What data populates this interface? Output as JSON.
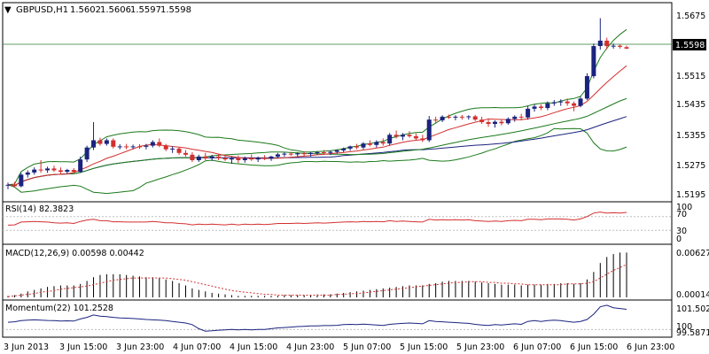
{
  "header": {
    "arrow": "▼",
    "symbol": "GBPUSD,H1",
    "open": "1.5602",
    "high": "1.5606",
    "low": "1.5597",
    "close": "1.5598"
  },
  "colors": {
    "bull": "#1a237e",
    "bear": "#d32f2f",
    "bb_mid": "#1a237e",
    "bb_band": "#1b7a1b",
    "ma_red": "#d32f2f",
    "ma_green": "#1b7a1b",
    "rsi_line": "#d32f2f",
    "macd_hist": "#000000",
    "macd_signal": "#d32f2f",
    "momentum_line": "#1a237e",
    "grid": "#bdbdbd",
    "current_price_line": "#2e7d32"
  },
  "price_axis": {
    "ticks": [
      "1.5675",
      "1.5515",
      "1.5435",
      "1.5355",
      "1.5275",
      "1.5195"
    ],
    "current_price": "1.5598"
  },
  "rsi": {
    "title": "RSI(14) 82.3823",
    "levels": [
      "100",
      "70",
      "30",
      "0"
    ]
  },
  "macd": {
    "title": "MACD(12,26,9) 0.00598 0.00442",
    "top_label": "0.00627",
    "bottom_label": "0.00014"
  },
  "momentum": {
    "title": "Momentum(22) 101.2528",
    "top_label": "101.5027",
    "mid_label": "100",
    "bottom_label": "99.5871"
  },
  "time_axis": {
    "labels": [
      "3 Jun 2013",
      "3 Jun 15:00",
      "3 Jun 23:00",
      "4 Jun 07:00",
      "4 Jun 15:00",
      "4 Jun 23:00",
      "5 Jun 07:00",
      "5 Jun 15:00",
      "5 Jun 23:00",
      "6 Jun 07:00",
      "6 Jun 15:00",
      "6 Jun 23:00"
    ]
  },
  "chart_data": {
    "type": "candlestick",
    "symbol": "GBPUSD",
    "timeframe": "H1",
    "ylim": [
      1.518,
      1.572
    ],
    "candles": [
      {
        "o": 1.522,
        "h": 1.5228,
        "l": 1.521,
        "c": 1.5222
      },
      {
        "o": 1.5222,
        "h": 1.523,
        "l": 1.5215,
        "c": 1.5218
      },
      {
        "o": 1.5218,
        "h": 1.5255,
        "l": 1.5215,
        "c": 1.525
      },
      {
        "o": 1.525,
        "h": 1.5262,
        "l": 1.5242,
        "c": 1.5256
      },
      {
        "o": 1.5256,
        "h": 1.527,
        "l": 1.525,
        "c": 1.5264
      },
      {
        "o": 1.5264,
        "h": 1.529,
        "l": 1.5255,
        "c": 1.5262
      },
      {
        "o": 1.5262,
        "h": 1.5272,
        "l": 1.5255,
        "c": 1.5267
      },
      {
        "o": 1.5267,
        "h": 1.5275,
        "l": 1.5258,
        "c": 1.5262
      },
      {
        "o": 1.5262,
        "h": 1.527,
        "l": 1.525,
        "c": 1.5258
      },
      {
        "o": 1.5258,
        "h": 1.5266,
        "l": 1.5252,
        "c": 1.5263
      },
      {
        "o": 1.5263,
        "h": 1.5268,
        "l": 1.5255,
        "c": 1.5258
      },
      {
        "o": 1.5258,
        "h": 1.53,
        "l": 1.5255,
        "c": 1.5292
      },
      {
        "o": 1.5292,
        "h": 1.533,
        "l": 1.5285,
        "c": 1.5325
      },
      {
        "o": 1.5325,
        "h": 1.5395,
        "l": 1.5318,
        "c": 1.5345
      },
      {
        "o": 1.5345,
        "h": 1.5352,
        "l": 1.533,
        "c": 1.5335
      },
      {
        "o": 1.5335,
        "h": 1.535,
        "l": 1.533,
        "c": 1.5345
      },
      {
        "o": 1.5345,
        "h": 1.535,
        "l": 1.5322,
        "c": 1.5327
      },
      {
        "o": 1.5327,
        "h": 1.5334,
        "l": 1.532,
        "c": 1.5328
      },
      {
        "o": 1.5328,
        "h": 1.5335,
        "l": 1.532,
        "c": 1.5326
      },
      {
        "o": 1.5326,
        "h": 1.5333,
        "l": 1.532,
        "c": 1.5328
      },
      {
        "o": 1.5328,
        "h": 1.5334,
        "l": 1.5321,
        "c": 1.5327
      },
      {
        "o": 1.5327,
        "h": 1.5335,
        "l": 1.532,
        "c": 1.533
      },
      {
        "o": 1.533,
        "h": 1.5345,
        "l": 1.5325,
        "c": 1.534
      },
      {
        "o": 1.534,
        "h": 1.535,
        "l": 1.5326,
        "c": 1.533
      },
      {
        "o": 1.533,
        "h": 1.5335,
        "l": 1.5315,
        "c": 1.532
      },
      {
        "o": 1.532,
        "h": 1.5328,
        "l": 1.531,
        "c": 1.5322
      },
      {
        "o": 1.5322,
        "h": 1.5326,
        "l": 1.5305,
        "c": 1.531
      },
      {
        "o": 1.531,
        "h": 1.5318,
        "l": 1.53,
        "c": 1.5305
      },
      {
        "o": 1.5305,
        "h": 1.5312,
        "l": 1.5285,
        "c": 1.529
      },
      {
        "o": 1.529,
        "h": 1.5305,
        "l": 1.5285,
        "c": 1.53
      },
      {
        "o": 1.53,
        "h": 1.531,
        "l": 1.529,
        "c": 1.5295
      },
      {
        "o": 1.5295,
        "h": 1.5305,
        "l": 1.5288,
        "c": 1.53
      },
      {
        "o": 1.53,
        "h": 1.5308,
        "l": 1.529,
        "c": 1.5296
      },
      {
        "o": 1.5296,
        "h": 1.5305,
        "l": 1.5288,
        "c": 1.5292
      },
      {
        "o": 1.5292,
        "h": 1.53,
        "l": 1.528,
        "c": 1.5295
      },
      {
        "o": 1.5295,
        "h": 1.5303,
        "l": 1.5282,
        "c": 1.529
      },
      {
        "o": 1.529,
        "h": 1.53,
        "l": 1.5283,
        "c": 1.5295
      },
      {
        "o": 1.5295,
        "h": 1.5306,
        "l": 1.5288,
        "c": 1.5292
      },
      {
        "o": 1.5292,
        "h": 1.53,
        "l": 1.5285,
        "c": 1.5296
      },
      {
        "o": 1.5296,
        "h": 1.5304,
        "l": 1.529,
        "c": 1.5294
      },
      {
        "o": 1.5294,
        "h": 1.5302,
        "l": 1.5288,
        "c": 1.53
      },
      {
        "o": 1.53,
        "h": 1.531,
        "l": 1.5295,
        "c": 1.5306
      },
      {
        "o": 1.5306,
        "h": 1.5312,
        "l": 1.53,
        "c": 1.5308
      },
      {
        "o": 1.5308,
        "h": 1.5313,
        "l": 1.5302,
        "c": 1.5306
      },
      {
        "o": 1.5306,
        "h": 1.5312,
        "l": 1.53,
        "c": 1.5309
      },
      {
        "o": 1.5309,
        "h": 1.5314,
        "l": 1.5302,
        "c": 1.5307
      },
      {
        "o": 1.5307,
        "h": 1.5312,
        "l": 1.53,
        "c": 1.531
      },
      {
        "o": 1.531,
        "h": 1.5315,
        "l": 1.5305,
        "c": 1.5312
      },
      {
        "o": 1.5312,
        "h": 1.5318,
        "l": 1.5306,
        "c": 1.531
      },
      {
        "o": 1.531,
        "h": 1.5316,
        "l": 1.5304,
        "c": 1.5313
      },
      {
        "o": 1.5313,
        "h": 1.532,
        "l": 1.5308,
        "c": 1.5317
      },
      {
        "o": 1.5317,
        "h": 1.5325,
        "l": 1.5312,
        "c": 1.5322
      },
      {
        "o": 1.5322,
        "h": 1.533,
        "l": 1.5316,
        "c": 1.5328
      },
      {
        "o": 1.5328,
        "h": 1.5335,
        "l": 1.532,
        "c": 1.5325
      },
      {
        "o": 1.5325,
        "h": 1.534,
        "l": 1.532,
        "c": 1.5336
      },
      {
        "o": 1.5336,
        "h": 1.5345,
        "l": 1.5328,
        "c": 1.5332
      },
      {
        "o": 1.5332,
        "h": 1.5345,
        "l": 1.5325,
        "c": 1.534
      },
      {
        "o": 1.534,
        "h": 1.535,
        "l": 1.533,
        "c": 1.5336
      },
      {
        "o": 1.5336,
        "h": 1.5365,
        "l": 1.533,
        "c": 1.536
      },
      {
        "o": 1.536,
        "h": 1.5372,
        "l": 1.535,
        "c": 1.5355
      },
      {
        "o": 1.5355,
        "h": 1.5365,
        "l": 1.5345,
        "c": 1.536
      },
      {
        "o": 1.536,
        "h": 1.537,
        "l": 1.5352,
        "c": 1.5356
      },
      {
        "o": 1.5356,
        "h": 1.5364,
        "l": 1.5345,
        "c": 1.535
      },
      {
        "o": 1.535,
        "h": 1.536,
        "l": 1.534,
        "c": 1.5345
      },
      {
        "o": 1.5345,
        "h": 1.5412,
        "l": 1.534,
        "c": 1.5402
      },
      {
        "o": 1.5402,
        "h": 1.541,
        "l": 1.5392,
        "c": 1.54
      },
      {
        "o": 1.54,
        "h": 1.5414,
        "l": 1.5395,
        "c": 1.541
      },
      {
        "o": 1.541,
        "h": 1.5416,
        "l": 1.5404,
        "c": 1.5408
      },
      {
        "o": 1.5408,
        "h": 1.5414,
        "l": 1.54,
        "c": 1.541
      },
      {
        "o": 1.541,
        "h": 1.5415,
        "l": 1.5402,
        "c": 1.5409
      },
      {
        "o": 1.5409,
        "h": 1.5414,
        "l": 1.5402,
        "c": 1.5411
      },
      {
        "o": 1.5411,
        "h": 1.5415,
        "l": 1.5398,
        "c": 1.5402
      },
      {
        "o": 1.5402,
        "h": 1.541,
        "l": 1.539,
        "c": 1.5395
      },
      {
        "o": 1.5395,
        "h": 1.5402,
        "l": 1.5382,
        "c": 1.539
      },
      {
        "o": 1.539,
        "h": 1.54,
        "l": 1.538,
        "c": 1.5396
      },
      {
        "o": 1.5396,
        "h": 1.5402,
        "l": 1.5386,
        "c": 1.5392
      },
      {
        "o": 1.5392,
        "h": 1.5408,
        "l": 1.5388,
        "c": 1.5404
      },
      {
        "o": 1.5404,
        "h": 1.5414,
        "l": 1.5396,
        "c": 1.541
      },
      {
        "o": 1.541,
        "h": 1.5418,
        "l": 1.54,
        "c": 1.5408
      },
      {
        "o": 1.5408,
        "h": 1.544,
        "l": 1.5402,
        "c": 1.5432
      },
      {
        "o": 1.5432,
        "h": 1.5444,
        "l": 1.5424,
        "c": 1.5438
      },
      {
        "o": 1.5438,
        "h": 1.5444,
        "l": 1.5428,
        "c": 1.5434
      },
      {
        "o": 1.5434,
        "h": 1.5452,
        "l": 1.5428,
        "c": 1.5447
      },
      {
        "o": 1.5447,
        "h": 1.5456,
        "l": 1.544,
        "c": 1.545
      },
      {
        "o": 1.545,
        "h": 1.5458,
        "l": 1.544,
        "c": 1.5452
      },
      {
        "o": 1.5452,
        "h": 1.546,
        "l": 1.544,
        "c": 1.5447
      },
      {
        "o": 1.5447,
        "h": 1.5452,
        "l": 1.5425,
        "c": 1.544
      },
      {
        "o": 1.544,
        "h": 1.5465,
        "l": 1.5436,
        "c": 1.546
      },
      {
        "o": 1.546,
        "h": 1.553,
        "l": 1.5456,
        "c": 1.5522
      },
      {
        "o": 1.5522,
        "h": 1.5612,
        "l": 1.5516,
        "c": 1.5605
      },
      {
        "o": 1.5605,
        "h": 1.5682,
        "l": 1.5595,
        "c": 1.562
      },
      {
        "o": 1.562,
        "h": 1.5628,
        "l": 1.5596,
        "c": 1.5605
      },
      {
        "o": 1.5605,
        "h": 1.5612,
        "l": 1.5598,
        "c": 1.5606
      },
      {
        "o": 1.5606,
        "h": 1.561,
        "l": 1.5598,
        "c": 1.5603
      },
      {
        "o": 1.5602,
        "h": 1.5606,
        "l": 1.5597,
        "c": 1.5598
      }
    ],
    "rsi_values": [
      45,
      46,
      54,
      55,
      56,
      55,
      54,
      52,
      51,
      52,
      50,
      56,
      60,
      62,
      58,
      58,
      55,
      55,
      54,
      54,
      54,
      54,
      56,
      54,
      52,
      52,
      50,
      49,
      46,
      48,
      47,
      48,
      47,
      46,
      48,
      46,
      48,
      47,
      48,
      47,
      48,
      50,
      50,
      50,
      51,
      50,
      51,
      52,
      51,
      52,
      53,
      54,
      55,
      54,
      56,
      55,
      56,
      55,
      58,
      56,
      57,
      56,
      55,
      54,
      62,
      60,
      61,
      60,
      61,
      60,
      61,
      58,
      57,
      56,
      57,
      56,
      58,
      59,
      58,
      62,
      62,
      61,
      63,
      63,
      63,
      62,
      60,
      63,
      70,
      80,
      83,
      80,
      81,
      80,
      82
    ],
    "macd_hist": [
      0.0002,
      0.0003,
      0.0005,
      0.0008,
      0.001,
      0.0012,
      0.0014,
      0.0015,
      0.0016,
      0.0016,
      0.0016,
      0.0018,
      0.0022,
      0.0027,
      0.003,
      0.0031,
      0.0031,
      0.0031,
      0.003,
      0.0029,
      0.0028,
      0.0027,
      0.0027,
      0.0026,
      0.0024,
      0.0022,
      0.0019,
      0.0016,
      0.0012,
      0.001,
      0.0008,
      0.0006,
      0.0005,
      0.0004,
      0.0003,
      0.0002,
      0.0002,
      0.0002,
      0.0002,
      0.0002,
      0.0002,
      0.0002,
      0.0003,
      0.0003,
      0.0003,
      0.0003,
      0.0003,
      0.0004,
      0.0004,
      0.0004,
      0.0005,
      0.0006,
      0.0007,
      0.0008,
      0.0009,
      0.001,
      0.0011,
      0.0012,
      0.0013,
      0.0014,
      0.0015,
      0.0016,
      0.0016,
      0.0016,
      0.0018,
      0.0019,
      0.0021,
      0.0022,
      0.0022,
      0.0022,
      0.0022,
      0.0021,
      0.002,
      0.0019,
      0.0018,
      0.0017,
      0.0017,
      0.0017,
      0.0016,
      0.0017,
      0.0017,
      0.0017,
      0.0018,
      0.0018,
      0.0019,
      0.0019,
      0.0018,
      0.0019,
      0.0024,
      0.0034,
      0.0046,
      0.0054,
      0.0058,
      0.006,
      0.006
    ],
    "macd_signal": [
      0.0001,
      0.0002,
      0.0003,
      0.0004,
      0.0005,
      0.0007,
      0.0008,
      0.0009,
      0.0011,
      0.0012,
      0.0013,
      0.0014,
      0.0015,
      0.0017,
      0.0019,
      0.0021,
      0.0023,
      0.0024,
      0.0025,
      0.0026,
      0.0026,
      0.0026,
      0.0026,
      0.0026,
      0.0026,
      0.0025,
      0.0024,
      0.0023,
      0.0021,
      0.0019,
      0.0017,
      0.0015,
      0.0013,
      0.0011,
      0.0009,
      0.0008,
      0.0007,
      0.0006,
      0.0005,
      0.0004,
      0.0004,
      0.0003,
      0.0003,
      0.0003,
      0.0003,
      0.0003,
      0.0003,
      0.0003,
      0.0003,
      0.0003,
      0.0004,
      0.0004,
      0.0005,
      0.0005,
      0.0006,
      0.0007,
      0.0008,
      0.0009,
      0.001,
      0.0011,
      0.0012,
      0.0013,
      0.0014,
      0.0015,
      0.0016,
      0.0017,
      0.0018,
      0.0019,
      0.002,
      0.002,
      0.0021,
      0.0021,
      0.0021,
      0.002,
      0.002,
      0.0019,
      0.0019,
      0.0018,
      0.0018,
      0.0017,
      0.0017,
      0.0017,
      0.0017,
      0.0017,
      0.0017,
      0.0018,
      0.0018,
      0.0018,
      0.0019,
      0.0021,
      0.0026,
      0.0031,
      0.0036,
      0.004,
      0.0044
    ],
    "momentum_values": [
      100.45,
      100.48,
      100.55,
      100.58,
      100.6,
      100.58,
      100.56,
      100.55,
      100.52,
      100.54,
      100.52,
      100.65,
      100.75,
      100.9,
      100.82,
      100.8,
      100.75,
      100.72,
      100.7,
      100.68,
      100.65,
      100.62,
      100.6,
      100.58,
      100.55,
      100.5,
      100.45,
      100.4,
      100.3,
      100.05,
      99.9,
      99.92,
      99.96,
      99.98,
      100.0,
      99.98,
      100.0,
      99.98,
      100.0,
      100.0,
      100.05,
      100.1,
      100.12,
      100.15,
      100.18,
      100.2,
      100.22,
      100.22,
      100.24,
      100.24,
      100.26,
      100.3,
      100.32,
      100.3,
      100.33,
      100.3,
      100.28,
      100.25,
      100.32,
      100.35,
      100.38,
      100.4,
      100.38,
      100.35,
      100.55,
      100.5,
      100.48,
      100.45,
      100.43,
      100.4,
      100.38,
      100.32,
      100.28,
      100.25,
      100.3,
      100.28,
      100.32,
      100.35,
      100.32,
      100.5,
      100.55,
      100.5,
      100.55,
      100.58,
      100.55,
      100.5,
      100.45,
      100.5,
      100.62,
      100.95,
      101.4,
      101.5,
      101.35,
      101.3,
      101.25
    ]
  }
}
